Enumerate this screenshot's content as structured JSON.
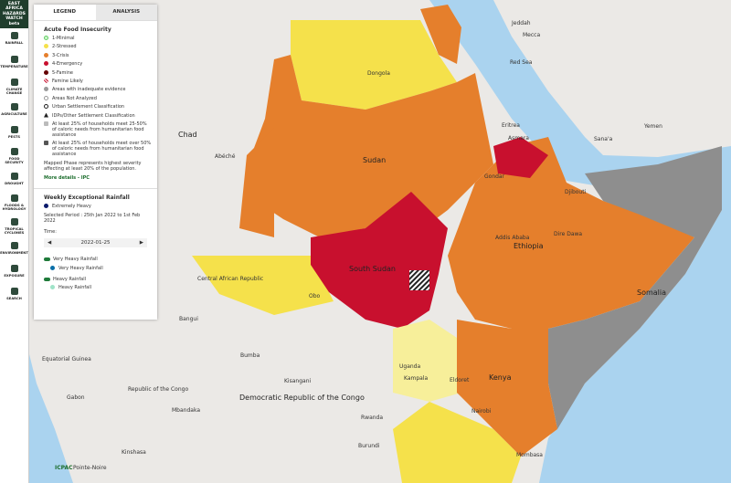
{
  "sidebar": {
    "logo": "EAST AFRICA HAZARDS WATCH",
    "logo_badge": "beta",
    "items": [
      "RAINFALL",
      "TEMPERATURE",
      "CLIMATE CHANGE",
      "AGRICULTURE",
      "PESTS",
      "FOOD SECURITY",
      "DROUGHT",
      "FLOODS & HYDROLOGY",
      "TROPICAL CYCLONES",
      "ENVIRONMENT",
      "EXPOSURE",
      "SEARCH"
    ]
  },
  "tabs": [
    "LEGEND",
    "ANALYSIS"
  ],
  "food_insecurity": {
    "title": "Acute Food Insecurity",
    "items": [
      "1-Minimal",
      "2-Stressed",
      "3-Crisis",
      "4-Emergency",
      "5-Famine",
      "Famine Likely",
      "Areas with inadequate evidence",
      "Areas Not Analyzed",
      "Urban Settlement Classification",
      "IDPs/Other Settlement Classification",
      "At least 25% of households meet 25-50% of caloric needs from humanitarian food assistance",
      "At least 25% of households meet over 50% of caloric needs from humanitarian food assistance"
    ],
    "note": "Mapped Phase represents highest severity affecting at least 20% of the population.",
    "link": "More details - IPC"
  },
  "rainfall": {
    "title": "Weekly Exceptional Rainfall",
    "legend": "Extremely Heavy",
    "period": "Selected Period : 25th Jan 2022 to 1st Feb 2022",
    "time_label": "Time:",
    "time_value": "2022-01-25",
    "layers": [
      {
        "toggle": "Very Heavy Rainfall",
        "legend": "Very Heavy Rainfall"
      },
      {
        "toggle": "Heavy Rainfall",
        "legend": "Heavy Rainfall"
      }
    ]
  },
  "map": {
    "labels": [
      "Jeddah",
      "Mecca",
      "Red Sea",
      "Yemen",
      "Sana'a",
      "Chad",
      "Dongola",
      "Sudan",
      "Abéché",
      "Eritrea",
      "Asmara",
      "Gondar",
      "Djibouti",
      "Addis Ababa",
      "Ethiopia",
      "Dire Dawa",
      "Central African Republic",
      "South Sudan",
      "Obo",
      "Bangui",
      "Somalia",
      "Bumba",
      "Equatorial Guinea",
      "Gabon",
      "Republic of the Congo",
      "Democratic Republic of the Congo",
      "Mbandaka",
      "Kisangani",
      "Uganda",
      "Kampala",
      "Eldoret",
      "Kenya",
      "Nairobi",
      "Rwanda",
      "Burundi",
      "Kinshasa",
      "Mombasa",
      "Pointe-Noire"
    ],
    "attribution": "ICPAC"
  }
}
